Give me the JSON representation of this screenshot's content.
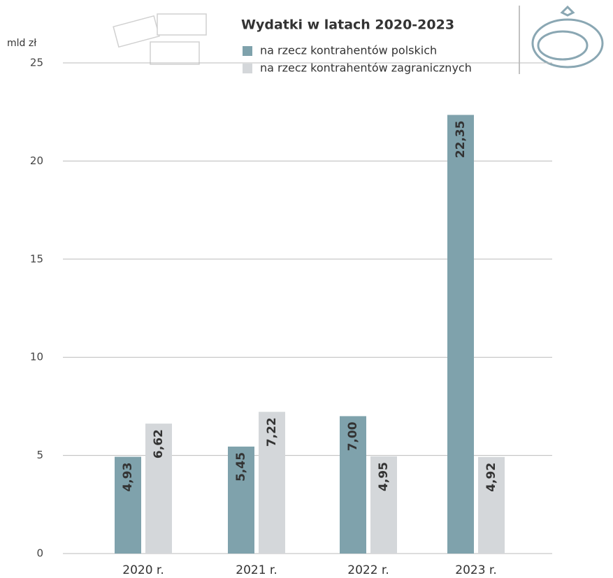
{
  "chart_data": {
    "type": "bar",
    "title": "Wydatki w latach 2020-2023",
    "y_unit": "mld zł",
    "categories": [
      "2020 r.",
      "2021 r.",
      "2022 r.",
      "2023 r."
    ],
    "series": [
      {
        "name": "na rzecz kontrahentów polskich",
        "color": "#7fa2ac",
        "values": [
          4.93,
          5.45,
          7.0,
          22.35
        ],
        "value_labels": [
          "4,93",
          "5,45",
          "7,00",
          "22,35"
        ]
      },
      {
        "name": "na rzecz kontrahentów zagranicznych",
        "color": "#d4d7da",
        "values": [
          6.62,
          7.22,
          4.95,
          4.92
        ],
        "value_labels": [
          "6,62",
          "7,22",
          "4,95",
          "4,92"
        ]
      }
    ],
    "ylim": [
      0,
      25
    ],
    "yticks": [
      0,
      5,
      10,
      15,
      20,
      25
    ],
    "grid": true
  }
}
